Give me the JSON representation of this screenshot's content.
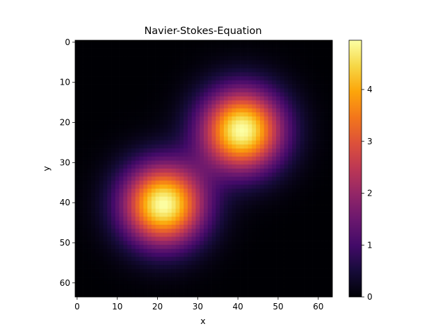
{
  "chart_data": {
    "type": "heatmap",
    "title": "Navier-Stokes-Equation",
    "xlabel": "x",
    "ylabel": "y",
    "grid": false,
    "colormap": "inferno",
    "size": [
      64,
      64
    ],
    "xlim": [
      0,
      64
    ],
    "ylim": [
      64,
      0
    ],
    "xticks": [
      0,
      10,
      20,
      30,
      40,
      50,
      60
    ],
    "yticks": [
      0,
      10,
      20,
      30,
      40,
      50,
      60
    ],
    "colorbar": {
      "min": 0,
      "max": 4.95,
      "ticks": [
        0,
        1,
        2,
        3,
        4
      ]
    },
    "peaks": [
      {
        "x": 41,
        "y": 22,
        "value": 4.95,
        "sigma": 7
      },
      {
        "x": 21.5,
        "y": 40.5,
        "value": 4.95,
        "sigma": 7
      }
    ]
  }
}
